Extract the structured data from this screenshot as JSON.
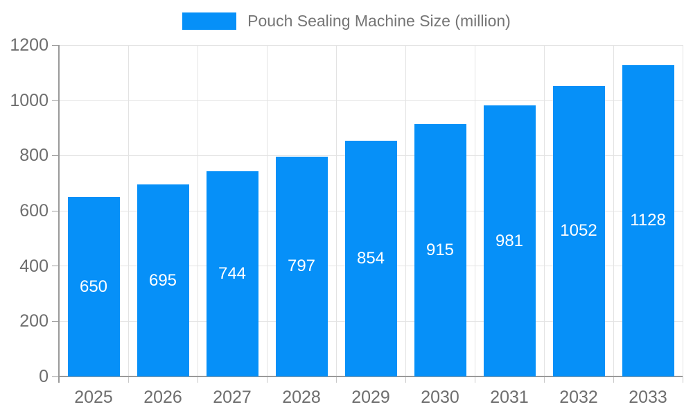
{
  "chart_data": {
    "type": "bar",
    "title": "Pouch Sealing Machine Size (million)",
    "legend": "Pouch Sealing Machine Size (million)",
    "legend_position": "top-center",
    "categories": [
      "2025",
      "2026",
      "2027",
      "2028",
      "2029",
      "2030",
      "2031",
      "2032",
      "2033"
    ],
    "values": [
      650,
      695,
      744,
      797,
      854,
      915,
      981,
      1052,
      1128
    ],
    "data_labels": [
      "650",
      "695",
      "744",
      "797",
      "854",
      "915",
      "981",
      "1052",
      "1128"
    ],
    "xlabel": "",
    "ylabel": "",
    "ylim": [
      0,
      1200
    ],
    "yticks": [
      0,
      200,
      400,
      600,
      800,
      1000,
      1200
    ],
    "grid": true,
    "colors": {
      "bar": "#0690f8",
      "bar_value_text": "#ffffff",
      "axis_text": "#6e6e6e",
      "legend_text": "#757575",
      "grid_line": "#e3e3e3",
      "axis_line": "#9a9a9a",
      "tick_line": "#c9c9c9"
    }
  }
}
